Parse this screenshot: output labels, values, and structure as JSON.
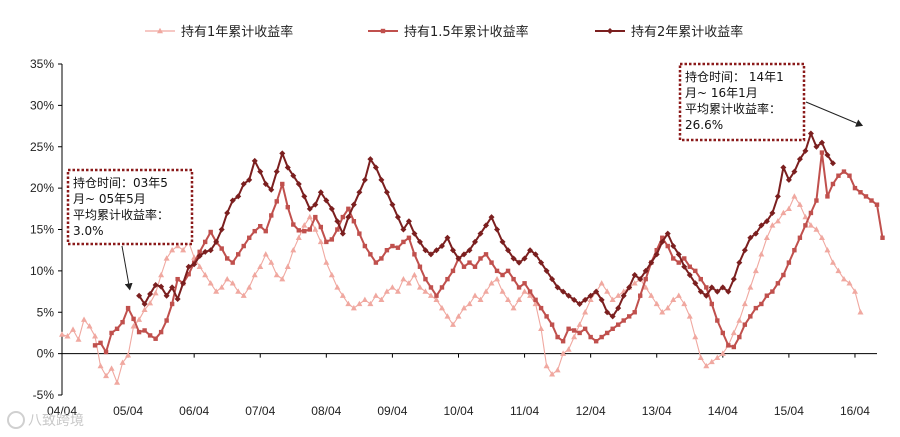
{
  "chart_data": {
    "type": "line",
    "title": "",
    "xlabel": "",
    "ylabel": "",
    "ylim": [
      -5,
      35
    ],
    "ytick_values": [
      -5,
      0,
      5,
      10,
      15,
      20,
      25,
      30,
      35
    ],
    "ytick_labels": [
      "-5%",
      "0%",
      "5%",
      "10%",
      "15%",
      "20%",
      "25%",
      "30%",
      "35%"
    ],
    "xlim": [
      0,
      148
    ],
    "xtick_positions": [
      0,
      12,
      24,
      36,
      48,
      60,
      72,
      84,
      96,
      108,
      120,
      132,
      144
    ],
    "xtick_labels": [
      "04/04",
      "05/04",
      "06/04",
      "07/04",
      "08/04",
      "09/04",
      "10/04",
      "11/04",
      "12/04",
      "13/04",
      "14/04",
      "15/04",
      "16/04"
    ],
    "grid": false,
    "legend_position": "top",
    "series": [
      {
        "name": "持有1年累计收益率",
        "color": "#f0a8a0",
        "marker": "triangle",
        "start": 0,
        "values": [
          2.3,
          2.1,
          2.9,
          1.7,
          4.1,
          3.3,
          2.1,
          -1.5,
          -2.7,
          -1.8,
          -3.5,
          -1.1,
          -0.2,
          3.3,
          4.1,
          5.3,
          6.1,
          7.3,
          9.5,
          11.5,
          12.5,
          13.0,
          12.5,
          13.5,
          11.6,
          10.5,
          9.5,
          8.5,
          7.5,
          8.0,
          9.0,
          8.5,
          7.5,
          7.0,
          8.0,
          9.5,
          10.5,
          12.0,
          11.0,
          9.5,
          9.0,
          10.5,
          12.5,
          14.0,
          15.5,
          16.5,
          15.0,
          13.5,
          11.0,
          9.5,
          8.0,
          7.0,
          6.0,
          5.5,
          6.0,
          6.5,
          6.0,
          7.0,
          6.5,
          7.5,
          8.0,
          7.5,
          9.0,
          8.5,
          9.5,
          8.0,
          7.5,
          7.0,
          6.5,
          5.5,
          4.5,
          3.5,
          4.5,
          5.5,
          6.0,
          7.0,
          6.5,
          7.5,
          8.5,
          9.0,
          7.5,
          6.5,
          5.5,
          6.5,
          7.5,
          7.0,
          6.0,
          3.0,
          -1.5,
          -2.5,
          -2.0,
          0.0,
          0.5,
          2.0,
          3.5,
          5.0,
          6.5,
          7.5,
          8.5,
          7.5,
          6.5,
          7.0,
          7.5,
          8.0,
          8.5,
          9.0,
          8.0,
          7.0,
          6.0,
          5.0,
          5.5,
          6.5,
          7.0,
          6.0,
          4.5,
          2.0,
          -0.5,
          -1.5,
          -1.0,
          -0.5,
          0.0,
          1.0,
          2.5,
          4.0,
          6.0,
          8.0,
          10.0,
          12.0,
          14.0,
          15.5,
          16.0,
          17.0,
          17.5,
          19.0,
          18.0,
          16.5,
          15.5,
          15.0,
          14.0,
          12.5,
          11.0,
          10.0,
          9.0,
          8.5,
          7.5,
          5.0
        ]
      },
      {
        "name": "持有1.5年累计收益率",
        "color": "#c0504d",
        "marker": "square",
        "start": 6,
        "values": [
          1.0,
          1.3,
          0.2,
          2.5,
          3.0,
          3.8,
          5.5,
          4.2,
          2.6,
          2.8,
          2.2,
          1.8,
          2.6,
          4.0,
          6.0,
          9.0,
          8.5,
          9.6,
          11.0,
          12.3,
          13.5,
          14.7,
          13.5,
          12.7,
          11.5,
          11.0,
          12.0,
          13.0,
          14.0,
          14.8,
          15.4,
          14.8,
          16.7,
          18.4,
          20.5,
          17.7,
          15.6,
          14.9,
          14.8,
          15.0,
          16.5,
          15.3,
          13.5,
          13.8,
          15.0,
          16.5,
          17.5,
          16.0,
          14.5,
          13.0,
          12.0,
          11.0,
          11.5,
          12.5,
          13.0,
          12.8,
          13.5,
          14.0,
          12.0,
          10.5,
          9.0,
          8.0,
          7.0,
          8.0,
          9.0,
          10.0,
          11.5,
          10.5,
          11.0,
          10.5,
          11.5,
          12.0,
          11.0,
          10.0,
          9.5,
          10.0,
          9.0,
          8.0,
          8.5,
          7.5,
          6.5,
          5.5,
          4.5,
          3.5,
          2.0,
          1.5,
          3.0,
          2.8,
          2.5,
          3.0,
          2.0,
          1.5,
          2.0,
          2.5,
          3.0,
          3.5,
          4.0,
          4.5,
          5.0,
          7.0,
          9.0,
          11.0,
          12.5,
          14.0,
          13.0,
          11.5,
          11.0,
          11.5,
          10.5,
          10.0,
          9.0,
          8.0,
          6.0,
          4.0,
          2.5,
          1.0,
          0.8,
          2.0,
          3.5,
          4.5,
          5.5,
          6.0,
          7.0,
          7.5,
          8.5,
          9.5,
          11.0,
          12.5,
          14.0,
          15.5,
          17.0,
          18.5,
          24.3,
          19.0,
          20.5,
          21.5,
          22.0,
          21.5,
          20.0,
          19.5,
          19.0,
          18.5,
          18.0,
          14.0
        ]
      },
      {
        "name": "持有2年累计收益率",
        "color": "#7b1f1f",
        "marker": "diamond",
        "start": 14,
        "values": [
          7.0,
          6.0,
          7.2,
          8.3,
          8.1,
          7.0,
          8.0,
          6.6,
          8.5,
          10.5,
          10.8,
          11.8,
          12.3,
          12.5,
          13.5,
          15.0,
          17.0,
          18.5,
          19.0,
          20.5,
          21.0,
          23.3,
          22.0,
          20.5,
          19.8,
          22.0,
          24.2,
          22.5,
          21.5,
          20.5,
          19.0,
          17.5,
          18.0,
          19.5,
          18.5,
          17.5,
          16.0,
          14.5,
          16.5,
          18.0,
          19.5,
          21.0,
          23.5,
          22.5,
          21.0,
          19.5,
          18.0,
          16.5,
          15.0,
          16.0,
          14.5,
          13.5,
          12.5,
          12.0,
          12.5,
          13.0,
          14.0,
          12.5,
          11.5,
          12.0,
          12.5,
          13.5,
          14.5,
          15.5,
          16.5,
          15.0,
          13.5,
          12.5,
          11.5,
          11.0,
          11.5,
          12.5,
          12.0,
          11.0,
          10.0,
          9.0,
          8.0,
          7.5,
          7.0,
          6.5,
          6.0,
          6.5,
          7.0,
          7.5,
          6.5,
          5.0,
          4.5,
          5.5,
          7.0,
          8.0,
          9.5,
          9.0,
          10.0,
          11.0,
          12.0,
          13.5,
          14.5,
          13.0,
          12.0,
          10.5,
          9.5,
          8.5,
          7.5,
          7.0,
          8.0,
          7.5,
          8.0,
          7.5,
          9.0,
          11.0,
          12.5,
          14.0,
          14.5,
          15.5,
          16.0,
          17.0,
          19.0,
          22.5,
          21.0,
          22.0,
          23.5,
          24.5,
          26.6,
          25.0,
          25.5,
          24.0,
          23.0
        ]
      }
    ],
    "annotations": [
      {
        "lines": [
          "持仓时间：03年5",
          "月~ 05年5月",
          "平均累计收益率：",
          "3.0%"
        ],
        "target_x": 12.3,
        "target_y": 6.8
      },
      {
        "lines": [
          "持仓时间： 14年1",
          "月~ 16年1月",
          "平均累计收益率：",
          "26.6%"
        ],
        "target_x": 145.3,
        "target_y": 26.6
      }
    ]
  },
  "watermark": "八致跨境"
}
